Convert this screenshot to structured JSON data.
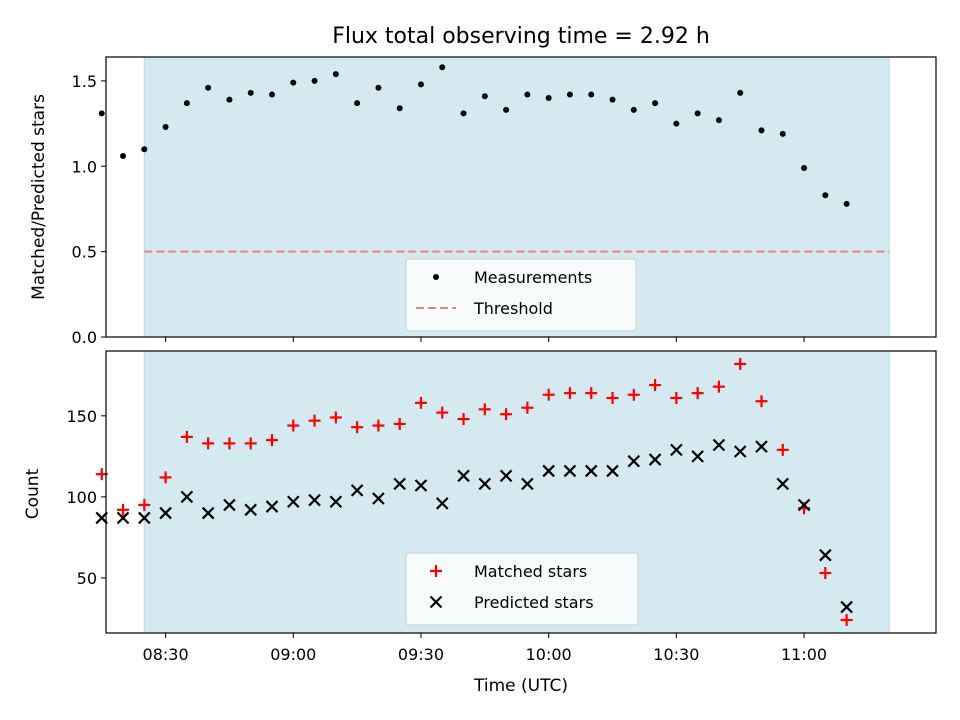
{
  "title": "Flux total observing time = 2.92 h",
  "colors": {
    "background_shade": "#d4eaf0",
    "measurement": "#000000",
    "threshold": "#f08080",
    "matched": "#ff0000",
    "predicted": "#000000"
  },
  "x_ticks": [
    "08:30",
    "09:00",
    "09:30",
    "10:00",
    "10:30",
    "11:00"
  ],
  "x_tick_minutes": [
    510,
    540,
    570,
    600,
    630,
    660
  ],
  "chart_data": [
    {
      "type": "scatter",
      "ylabel": "Matched/Predicted stars",
      "xlabel": "",
      "xlim_minutes": [
        496,
        691
      ],
      "ylim": [
        0,
        1.64
      ],
      "yticks": [
        "0.0",
        "0.5",
        "1.0",
        "1.5"
      ],
      "ytick_values": [
        0,
        0.5,
        1.0,
        1.5
      ],
      "shaded_span_minutes": [
        505,
        680
      ],
      "legend": {
        "placement": "lower-center",
        "entries": [
          "Measurements",
          "Threshold"
        ]
      },
      "threshold": 0.5,
      "x": [
        "08:15",
        "08:20",
        "08:25",
        "08:30",
        "08:35",
        "08:40",
        "08:45",
        "08:50",
        "08:55",
        "09:00",
        "09:05",
        "09:10",
        "09:15",
        "09:20",
        "09:25",
        "09:30",
        "09:35",
        "09:40",
        "09:45",
        "09:50",
        "09:55",
        "10:00",
        "10:05",
        "10:10",
        "10:15",
        "10:20",
        "10:25",
        "10:30",
        "10:35",
        "10:40",
        "10:45",
        "10:50",
        "10:55",
        "11:00",
        "11:05",
        "11:10"
      ],
      "series": [
        {
          "name": "Measurements",
          "values": [
            1.31,
            1.06,
            1.1,
            1.23,
            1.37,
            1.46,
            1.39,
            1.43,
            1.42,
            1.49,
            1.5,
            1.54,
            1.37,
            1.46,
            1.34,
            1.48,
            1.58,
            1.31,
            1.41,
            1.33,
            1.42,
            1.4,
            1.42,
            1.42,
            1.39,
            1.33,
            1.37,
            1.25,
            1.31,
            1.27,
            1.43,
            1.21,
            1.19,
            0.99,
            0.83,
            0.78
          ]
        }
      ]
    },
    {
      "type": "scatter",
      "ylabel": "Count",
      "xlabel": "Time (UTC)",
      "xlim_minutes": [
        496,
        691
      ],
      "ylim": [
        16,
        190
      ],
      "yticks": [
        "50",
        "100",
        "150"
      ],
      "ytick_values": [
        50,
        100,
        150
      ],
      "shaded_span_minutes": [
        505,
        680
      ],
      "legend": {
        "placement": "lower-center",
        "entries": [
          "Matched stars",
          "Predicted stars"
        ]
      },
      "x": [
        "08:15",
        "08:20",
        "08:25",
        "08:30",
        "08:35",
        "08:40",
        "08:45",
        "08:50",
        "08:55",
        "09:00",
        "09:05",
        "09:10",
        "09:15",
        "09:20",
        "09:25",
        "09:30",
        "09:35",
        "09:40",
        "09:45",
        "09:50",
        "09:55",
        "10:00",
        "10:05",
        "10:10",
        "10:15",
        "10:20",
        "10:25",
        "10:30",
        "10:35",
        "10:40",
        "10:45",
        "10:50",
        "10:55",
        "11:00",
        "11:05",
        "11:10"
      ],
      "series": [
        {
          "name": "Matched stars",
          "values": [
            114,
            92,
            95,
            112,
            137,
            133,
            133,
            133,
            135,
            144,
            147,
            149,
            143,
            144,
            145,
            158,
            152,
            148,
            154,
            151,
            155,
            163,
            164,
            164,
            161,
            163,
            169,
            161,
            164,
            168,
            182,
            159,
            129,
            93,
            53,
            24
          ]
        },
        {
          "name": "Predicted stars",
          "values": [
            87,
            87,
            87,
            90,
            100,
            90,
            95,
            92,
            94,
            97,
            98,
            97,
            104,
            99,
            108,
            107,
            96,
            113,
            108,
            113,
            108,
            116,
            116,
            116,
            116,
            122,
            123,
            129,
            125,
            132,
            128,
            131,
            108,
            95,
            64,
            32
          ]
        }
      ]
    }
  ]
}
